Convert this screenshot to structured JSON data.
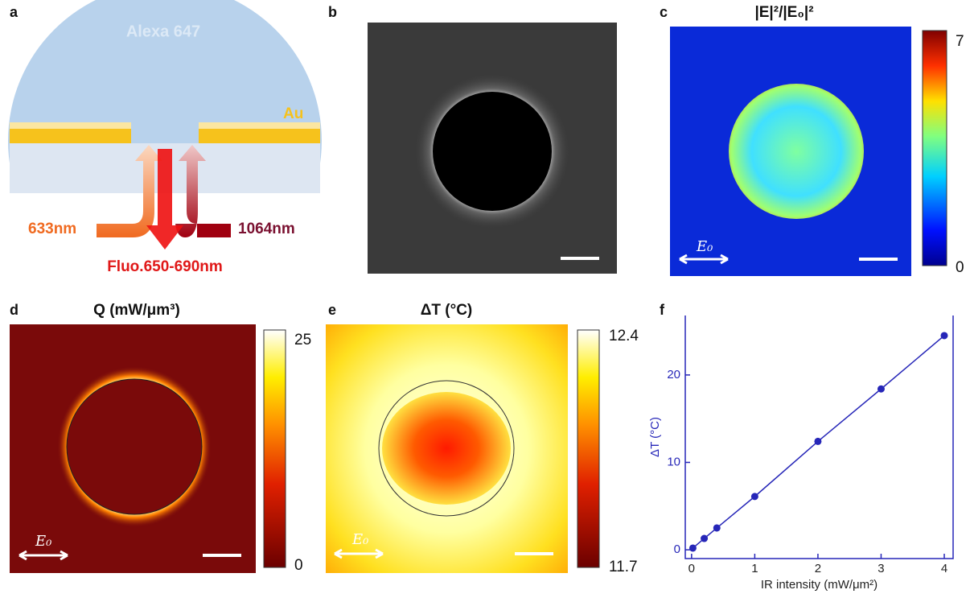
{
  "panels": {
    "a": {
      "letter": "a",
      "dye": "Alexa 647",
      "metal": "Au",
      "excitation": "633nm",
      "heating": "1064nm",
      "emission": "Fluo.650-690nm"
    },
    "b": {
      "letter": "b"
    },
    "c": {
      "letter": "c",
      "title": "|E|²/|E₀|²",
      "cbar_max": "7",
      "cbar_min": "0",
      "field": "E₀"
    },
    "d": {
      "letter": "d",
      "title": "Q (mW/μm³)",
      "cbar_max": "25",
      "cbar_min": "0",
      "field": "E₀"
    },
    "e": {
      "letter": "e",
      "title": "ΔT (°C)",
      "cbar_max": "12.4",
      "cbar_min": "11.7",
      "field": "E₀"
    }
  },
  "chart_data": {
    "type": "line",
    "letter": "f",
    "xlabel": "IR intensity (mW/μm²)",
    "ylabel": "ΔT (°C)",
    "x": [
      0.02,
      0.2,
      0.4,
      1,
      2,
      3,
      4
    ],
    "series": [
      {
        "color": "#2626b8",
        "values": [
          0.2,
          1.3,
          2.5,
          6.1,
          12.4,
          18.4,
          24.5
        ]
      }
    ],
    "xlim": [
      -0.1,
      4.14
    ],
    "ylim": [
      -1,
      26.8
    ],
    "xticks": [
      0,
      1,
      2,
      3,
      4
    ],
    "yticks": [
      0,
      10,
      20
    ]
  }
}
